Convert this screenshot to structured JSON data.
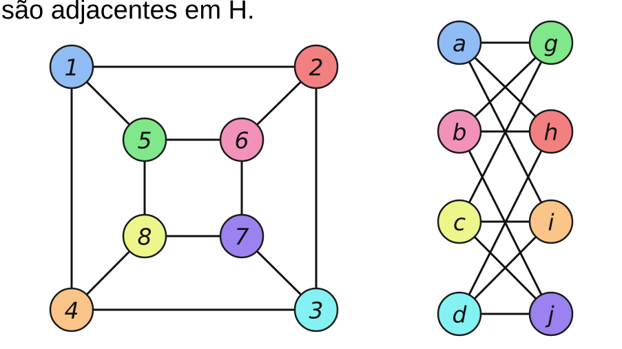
{
  "caption": "são adjacentes em H.",
  "graphs": [
    {
      "nodes": [
        {
          "id": "1",
          "label": "1",
          "color": "#8fbcf4"
        },
        {
          "id": "2",
          "label": "2",
          "color": "#f28080"
        },
        {
          "id": "3",
          "label": "3",
          "color": "#84f2f2"
        },
        {
          "id": "4",
          "label": "4",
          "color": "#fbc589"
        },
        {
          "id": "5",
          "label": "5",
          "color": "#80e88a"
        },
        {
          "id": "6",
          "label": "6",
          "color": "#f292ba"
        },
        {
          "id": "7",
          "label": "7",
          "color": "#9b82f0"
        },
        {
          "id": "8",
          "label": "8",
          "color": "#eef58a"
        }
      ],
      "edges": [
        [
          "1",
          "2"
        ],
        [
          "2",
          "3"
        ],
        [
          "3",
          "4"
        ],
        [
          "4",
          "1"
        ],
        [
          "5",
          "6"
        ],
        [
          "6",
          "7"
        ],
        [
          "7",
          "8"
        ],
        [
          "8",
          "5"
        ],
        [
          "1",
          "5"
        ],
        [
          "2",
          "6"
        ],
        [
          "3",
          "7"
        ],
        [
          "4",
          "8"
        ]
      ]
    },
    {
      "nodes": [
        {
          "id": "a",
          "label": "a",
          "color": "#8fbcf4"
        },
        {
          "id": "b",
          "label": "b",
          "color": "#f292ba"
        },
        {
          "id": "c",
          "label": "c",
          "color": "#eef58a"
        },
        {
          "id": "d",
          "label": "d",
          "color": "#84f2f2"
        },
        {
          "id": "g",
          "label": "g",
          "color": "#80e88a"
        },
        {
          "id": "h",
          "label": "h",
          "color": "#f28080"
        },
        {
          "id": "i",
          "label": "i",
          "color": "#fbc589"
        },
        {
          "id": "j",
          "label": "j",
          "color": "#9b82f0"
        }
      ],
      "edges": [
        [
          "a",
          "g"
        ],
        [
          "a",
          "h"
        ],
        [
          "a",
          "i"
        ],
        [
          "b",
          "g"
        ],
        [
          "b",
          "h"
        ],
        [
          "b",
          "j"
        ],
        [
          "c",
          "g"
        ],
        [
          "c",
          "i"
        ],
        [
          "c",
          "j"
        ],
        [
          "d",
          "h"
        ],
        [
          "d",
          "i"
        ],
        [
          "d",
          "j"
        ]
      ]
    }
  ]
}
